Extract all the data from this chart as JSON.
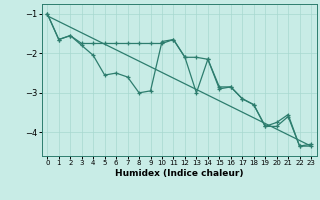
{
  "xlabel": "Humidex (Indice chaleur)",
  "xlim": [
    -0.5,
    23.5
  ],
  "ylim": [
    -4.6,
    -0.75
  ],
  "yticks": [
    -4,
    -3,
    -2,
    -1
  ],
  "xticks": [
    0,
    1,
    2,
    3,
    4,
    5,
    6,
    7,
    8,
    9,
    10,
    11,
    12,
    13,
    14,
    15,
    16,
    17,
    18,
    19,
    20,
    21,
    22,
    23
  ],
  "bg_color": "#c8ece6",
  "grid_color": "#a8d8d0",
  "line_color": "#2d7d6e",
  "line1_x": [
    0,
    1,
    2,
    3,
    4,
    5,
    6,
    7,
    8,
    9,
    10,
    11,
    12,
    13,
    14,
    15,
    16,
    17,
    18,
    19,
    20,
    21,
    22,
    23
  ],
  "line1_y": [
    -1.0,
    -1.65,
    -1.55,
    -1.75,
    -1.75,
    -1.75,
    -1.75,
    -1.75,
    -1.75,
    -1.75,
    -1.75,
    -1.65,
    -2.1,
    -2.1,
    -2.15,
    -2.85,
    -2.85,
    -3.15,
    -3.3,
    -3.85,
    -3.85,
    -3.6,
    -4.35,
    -4.35
  ],
  "line2_x": [
    0,
    1,
    2,
    3,
    4,
    5,
    6,
    7,
    8,
    9,
    10,
    11,
    12,
    13,
    14,
    15,
    16,
    17,
    18,
    19,
    20,
    21,
    22,
    23
  ],
  "line2_y": [
    -1.0,
    -1.65,
    -1.55,
    -1.8,
    -2.05,
    -2.55,
    -2.5,
    -2.6,
    -3.0,
    -2.95,
    -1.7,
    -1.65,
    -2.1,
    -3.0,
    -2.15,
    -2.9,
    -2.85,
    -3.15,
    -3.3,
    -3.85,
    -3.75,
    -3.55,
    -4.35,
    -4.3
  ],
  "line3_x": [
    0,
    23
  ],
  "line3_y": [
    -1.05,
    -4.35
  ]
}
